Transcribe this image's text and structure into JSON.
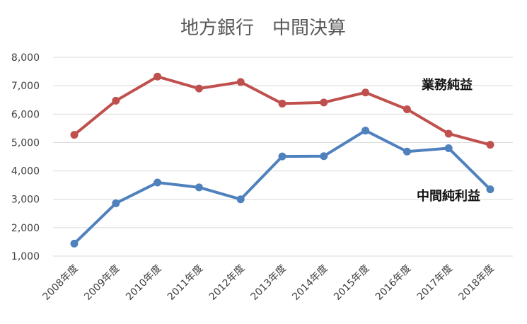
{
  "chart_data": {
    "type": "line",
    "title": "地方銀行　中間決算",
    "xlabel": "",
    "ylabel": "",
    "ylim": [
      1000,
      8000
    ],
    "yticks": [
      "1,000",
      "2,000",
      "3,000",
      "4,000",
      "5,000",
      "6,000",
      "7,000",
      "8,000"
    ],
    "categories": [
      "2008年度",
      "2009年度",
      "2010年度",
      "2011年度",
      "2012年度",
      "2013年度",
      "2014年度",
      "2015年度",
      "2016年度",
      "2017年度",
      "2018年度"
    ],
    "grid": true,
    "legend": "none (inline series labels)",
    "series": [
      {
        "name": "業務純益",
        "color": "#c0504d",
        "values": [
          5270,
          6470,
          7320,
          6900,
          7130,
          6370,
          6410,
          6760,
          6170,
          5310,
          4920
        ]
      },
      {
        "name": "中間純利益",
        "color": "#4f81bd",
        "values": [
          1440,
          2860,
          3590,
          3420,
          3000,
          4510,
          4520,
          5420,
          4680,
          4800,
          3350
        ]
      }
    ]
  }
}
